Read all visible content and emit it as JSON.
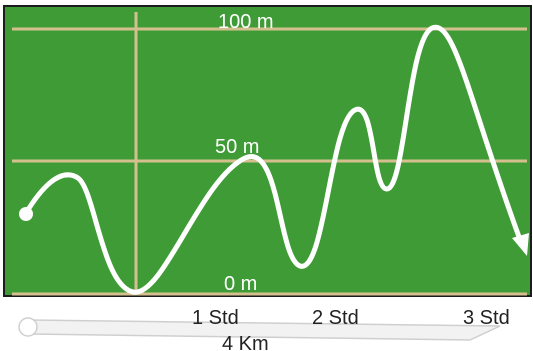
{
  "colors": {
    "field": "#3f9b36",
    "border": "#1c1c1c",
    "grid": "#d4c08e",
    "path": "#ffffff",
    "text_on_field": "#ffffff",
    "text_below": "#222222",
    "timeline": "#cfcfcf"
  },
  "height_labels": {
    "top": "100 m",
    "mid": "50 m",
    "bottom": "0 m"
  },
  "time_labels": [
    "1 Std",
    "2 Std",
    "3 Std"
  ],
  "distance_label": "4 Km"
}
